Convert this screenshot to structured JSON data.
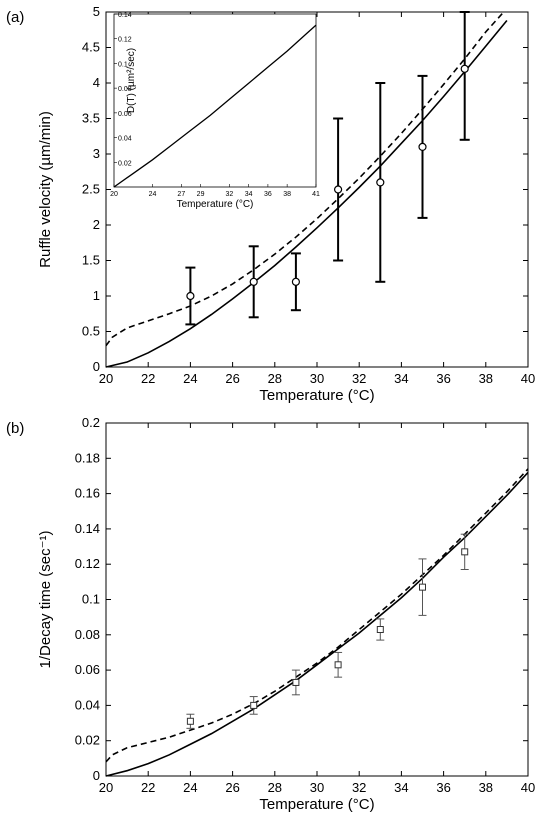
{
  "chart_data": [
    {
      "type": "line",
      "panel_label": "(a)",
      "xlabel": "Temperature (°C)",
      "ylabel": "Ruffle velocity (µm/min)",
      "xlim": [
        20,
        40
      ],
      "ylim": [
        0,
        5
      ],
      "x_ticks": [
        "20",
        "22",
        "24",
        "26",
        "28",
        "30",
        "32",
        "34",
        "36",
        "38",
        "40"
      ],
      "y_ticks": [
        "0",
        "0.5",
        "1",
        "1.5",
        "2",
        "2.5",
        "3",
        "3.5",
        "4",
        "4.5",
        "5"
      ],
      "series": [
        {
          "style": "solid",
          "x": [
            20,
            21,
            22,
            23,
            24,
            25,
            26,
            27,
            28,
            29,
            30,
            31,
            32,
            33,
            34,
            35,
            36,
            37,
            38,
            39
          ],
          "y": [
            0,
            0.07,
            0.2,
            0.36,
            0.54,
            0.74,
            0.96,
            1.19,
            1.43,
            1.69,
            1.96,
            2.24,
            2.53,
            2.83,
            3.15,
            3.47,
            3.81,
            4.16,
            4.52,
            4.88
          ]
        },
        {
          "style": "dashed",
          "x": [
            20,
            20.3,
            21,
            22,
            23,
            24,
            25,
            26,
            27,
            28,
            29,
            30,
            31,
            32,
            33,
            34,
            35,
            36,
            37,
            38,
            39
          ],
          "y": [
            0.3,
            0.42,
            0.55,
            0.65,
            0.75,
            0.86,
            1.0,
            1.17,
            1.37,
            1.59,
            1.83,
            2.09,
            2.37,
            2.66,
            2.97,
            3.29,
            3.63,
            3.98,
            4.34,
            4.72,
            5.05
          ]
        },
        {
          "style": "errorbar",
          "x": [
            24,
            27,
            29,
            31,
            33,
            35,
            37
          ],
          "y": [
            1.0,
            1.2,
            1.2,
            2.5,
            2.6,
            3.1,
            4.2
          ],
          "err": [
            0.4,
            0.5,
            0.4,
            1.0,
            1.4,
            1.0,
            1.0
          ]
        }
      ],
      "inset": {
        "xlabel": "Temperature (°C)",
        "ylabel": "D(T) (µm²/sec)",
        "xlim": [
          20,
          41
        ],
        "ylim": [
          0,
          0.14
        ],
        "x_ticks": [
          "20",
          "24",
          "27",
          "29",
          "32",
          "34",
          "36",
          "38",
          "41"
        ],
        "y_ticks": [
          "0.02",
          "0.04",
          "0.06",
          "0.08",
          "0.1",
          "0.12",
          "0.14"
        ],
        "x": [
          20,
          22,
          24,
          26,
          28,
          30,
          32,
          34,
          36,
          38,
          40,
          41
        ],
        "y": [
          0,
          0.011,
          0.022,
          0.034,
          0.046,
          0.058,
          0.071,
          0.084,
          0.097,
          0.11,
          0.124,
          0.131
        ]
      }
    },
    {
      "type": "line",
      "panel_label": "(b)",
      "xlabel": "Temperature (°C)",
      "ylabel": "1/Decay time (sec⁻¹)",
      "xlim": [
        20,
        40
      ],
      "ylim": [
        0,
        0.2
      ],
      "x_ticks": [
        "20",
        "22",
        "24",
        "26",
        "28",
        "30",
        "32",
        "34",
        "36",
        "38",
        "40"
      ],
      "y_ticks": [
        "0",
        "0.02",
        "0.04",
        "0.06",
        "0.08",
        "0.1",
        "0.12",
        "0.14",
        "0.16",
        "0.18",
        "0.2"
      ],
      "series": [
        {
          "style": "solid",
          "x": [
            20,
            21,
            22,
            23,
            24,
            25,
            26,
            27,
            28,
            29,
            30,
            31,
            32,
            33,
            34,
            35,
            36,
            37,
            38,
            39,
            40
          ],
          "y": [
            0,
            0.003,
            0.007,
            0.012,
            0.018,
            0.024,
            0.031,
            0.038,
            0.046,
            0.054,
            0.063,
            0.072,
            0.081,
            0.091,
            0.101,
            0.112,
            0.124,
            0.135,
            0.147,
            0.159,
            0.172
          ]
        },
        {
          "style": "dashed",
          "x": [
            20,
            20.3,
            21,
            22,
            23,
            24,
            25,
            26,
            27,
            28,
            29,
            30,
            31,
            32,
            33,
            34,
            35,
            36,
            37,
            38,
            39,
            40
          ],
          "y": [
            0.008,
            0.012,
            0.016,
            0.019,
            0.022,
            0.026,
            0.03,
            0.035,
            0.041,
            0.048,
            0.056,
            0.064,
            0.073,
            0.083,
            0.093,
            0.103,
            0.114,
            0.125,
            0.137,
            0.149,
            0.161,
            0.174
          ]
        },
        {
          "style": "errorbar",
          "x": [
            24,
            27,
            29,
            31,
            33,
            35,
            37
          ],
          "y": [
            0.031,
            0.04,
            0.053,
            0.063,
            0.083,
            0.107,
            0.127
          ],
          "err": [
            0.004,
            0.005,
            0.007,
            0.007,
            0.006,
            0.016,
            0.01
          ]
        }
      ]
    }
  ]
}
